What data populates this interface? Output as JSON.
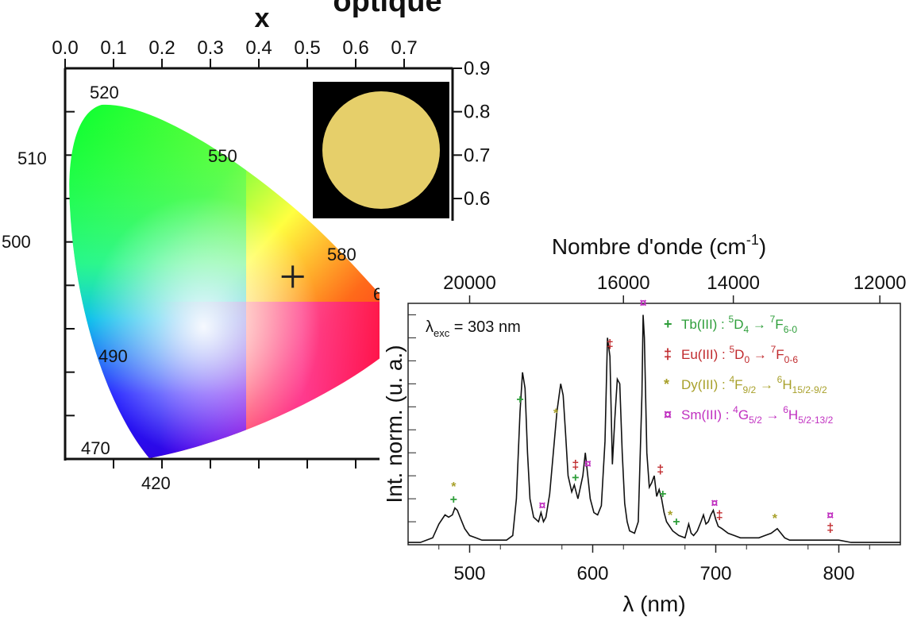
{
  "header": {
    "title_fragment": "optique"
  },
  "chart_data": [
    {
      "type": "scatter",
      "xlabel": "x",
      "ylabel": "",
      "xlim": [
        0.0,
        0.8
      ],
      "ylim": [
        0.0,
        0.9
      ],
      "x_ticks": [
        "0.0",
        "0.1",
        "0.2",
        "0.3",
        "0.4",
        "0.5",
        "0.6",
        "0.7"
      ],
      "y_ticks": [
        "0.6",
        "0.7",
        "0.8",
        "0.9"
      ],
      "wavelength_labels": [
        "520",
        "550",
        "510",
        "500",
        "580",
        "490",
        "470",
        "420",
        "6"
      ],
      "series": [
        {
          "x": [
            0.47
          ],
          "y": [
            0.42
          ]
        }
      ],
      "inset": {
        "shape": "circle",
        "fill": "#e6cf6a",
        "background": "#000000"
      }
    },
    {
      "type": "line",
      "xlabel": "λ (nm)",
      "ylabel": "Int. norm. (u. a.)",
      "top_axis_label_main": "Nombre d'onde (cm",
      "top_axis_label_exp": "-1",
      "top_axis_label_close": ")",
      "xlim": [
        450,
        850
      ],
      "ylim": [
        0,
        1.05
      ],
      "x_ticks": [
        "500",
        "600",
        "700",
        "800"
      ],
      "top_ticks": [
        "20000",
        "16000",
        "14000",
        "12000"
      ],
      "annotation": {
        "lambda": "λ",
        "sub": "exc",
        "text": " = 303 nm"
      },
      "series": [
        {
          "x": [
            450,
            460,
            470,
            475,
            480,
            483,
            486,
            488,
            490,
            493,
            496,
            500,
            505,
            510,
            515,
            520,
            525,
            530,
            535,
            538,
            541,
            543,
            545,
            547,
            549,
            552,
            556,
            558,
            560,
            562,
            565,
            568,
            571,
            574,
            576,
            578,
            580,
            583,
            585,
            588,
            590,
            592,
            594,
            596,
            598,
            601,
            604,
            607,
            610,
            612,
            614,
            616,
            618,
            620,
            622,
            624,
            626,
            628,
            630,
            634,
            637,
            640,
            641,
            642,
            644,
            646,
            648,
            650,
            652,
            654,
            656,
            658,
            660,
            665,
            670,
            675,
            678,
            680,
            682,
            685,
            688,
            690,
            692,
            694,
            696,
            698,
            700,
            702,
            705,
            710,
            715,
            720,
            725,
            730,
            735,
            740,
            745,
            750,
            753,
            756,
            760,
            765,
            770,
            780,
            790,
            800,
            810,
            820,
            830,
            840,
            850
          ],
          "values": [
            0.01,
            0.01,
            0.03,
            0.09,
            0.13,
            0.12,
            0.13,
            0.16,
            0.15,
            0.11,
            0.07,
            0.04,
            0.03,
            0.02,
            0.02,
            0.02,
            0.02,
            0.02,
            0.04,
            0.2,
            0.58,
            0.75,
            0.68,
            0.4,
            0.2,
            0.12,
            0.1,
            0.14,
            0.1,
            0.12,
            0.22,
            0.4,
            0.58,
            0.7,
            0.65,
            0.48,
            0.3,
            0.23,
            0.26,
            0.2,
            0.25,
            0.3,
            0.4,
            0.3,
            0.2,
            0.14,
            0.13,
            0.17,
            0.45,
            0.9,
            0.82,
            0.35,
            0.55,
            0.72,
            0.7,
            0.4,
            0.18,
            0.1,
            0.06,
            0.05,
            0.1,
            0.65,
            1.0,
            0.9,
            0.4,
            0.25,
            0.27,
            0.3,
            0.21,
            0.24,
            0.2,
            0.14,
            0.1,
            0.06,
            0.04,
            0.03,
            0.09,
            0.05,
            0.04,
            0.06,
            0.1,
            0.13,
            0.09,
            0.1,
            0.13,
            0.15,
            0.11,
            0.08,
            0.07,
            0.05,
            0.04,
            0.03,
            0.03,
            0.03,
            0.03,
            0.04,
            0.05,
            0.07,
            0.05,
            0.03,
            0.02,
            0.02,
            0.02,
            0.02,
            0.02,
            0.02,
            0.01,
            0.01,
            0.01,
            0.01,
            0.01
          ]
        }
      ],
      "markers": [
        {
          "symbol": "+",
          "color": "#2e9e3a",
          "x": [
            487,
            541,
            586,
            657,
            668
          ]
        },
        {
          "symbol": "‡",
          "color": "#c0292c",
          "x": [
            586,
            614,
            655,
            703,
            793
          ]
        },
        {
          "symbol": "*",
          "color": "#a8a02a",
          "x": [
            487,
            570,
            663,
            748
          ]
        },
        {
          "symbol": "¤",
          "color": "#c030c0",
          "x": [
            559,
            596,
            641,
            699,
            793
          ]
        }
      ],
      "legend": [
        {
          "symbol": "+",
          "color": "#2e9e3a",
          "ion": "Tb(III) : ",
          "sup1": "5",
          "lvl1": "D",
          "sub1": "4",
          "sup2": "7",
          "lvl2": "F",
          "sub2": "6-0"
        },
        {
          "symbol": "‡",
          "color": "#c0292c",
          "ion": "Eu(III) : ",
          "sup1": "5",
          "lvl1": "D",
          "sub1": "0",
          "sup2": "7",
          "lvl2": "F",
          "sub2": "0-6"
        },
        {
          "symbol": "*",
          "color": "#a8a02a",
          "ion": "Dy(III) : ",
          "sup1": "4",
          "lvl1": "F",
          "sub1": "9/2",
          "sup2": "6",
          "lvl2": "H",
          "sub2": "15/2-9/2"
        },
        {
          "symbol": "¤",
          "color": "#c030c0",
          "ion": "Sm(III) : ",
          "sup1": "4",
          "lvl1": "G",
          "sub1": "5/2",
          "sup2": "6",
          "lvl2": "H",
          "sub2": "5/2-13/2"
        }
      ]
    }
  ]
}
